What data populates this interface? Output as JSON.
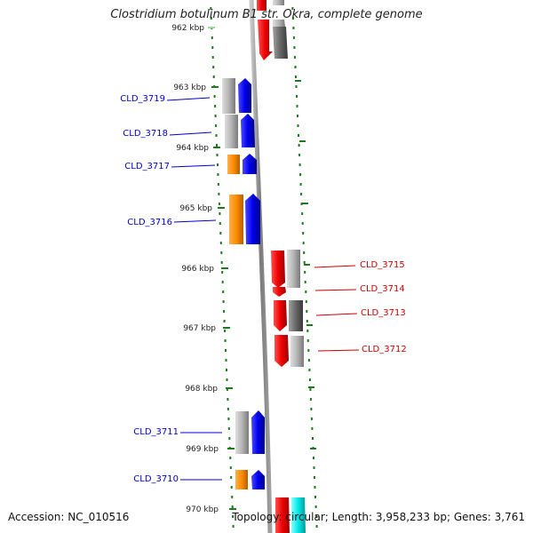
{
  "title": "Clostridium botulinum B1 str. Okra, complete genome",
  "footer": {
    "accession": "Accession: NC_010516",
    "topology": "Topology: circular; Length: 3,958,233 bp; Genes: 3,761"
  },
  "colors": {
    "tick": "#1f7a1f",
    "backbone": "#8c8c8c",
    "left_label": "#0000cc",
    "right_label": "#cc0000",
    "blue": "#0000ee",
    "orange": "#ff8c00",
    "red": "#ee0000",
    "gray": "#a9a9a9",
    "darkgray": "#666666",
    "cyan": "#00e5e5"
  },
  "axis_labels": [
    "962 kbp",
    "963 kbp",
    "964 kbp",
    "965 kbp",
    "966 kbp",
    "967 kbp",
    "968 kbp",
    "969 kbp",
    "970 kbp"
  ],
  "left_genes": [
    {
      "label": "CLD_3719"
    },
    {
      "label": "CLD_3718"
    },
    {
      "label": "CLD_3717"
    },
    {
      "label": "CLD_3716"
    },
    {
      "label": "CLD_3711"
    },
    {
      "label": "CLD_3710"
    }
  ],
  "right_genes": [
    {
      "label": "CLD_3715"
    },
    {
      "label": "CLD_3714"
    },
    {
      "label": "CLD_3713"
    },
    {
      "label": "CLD_3712"
    }
  ]
}
